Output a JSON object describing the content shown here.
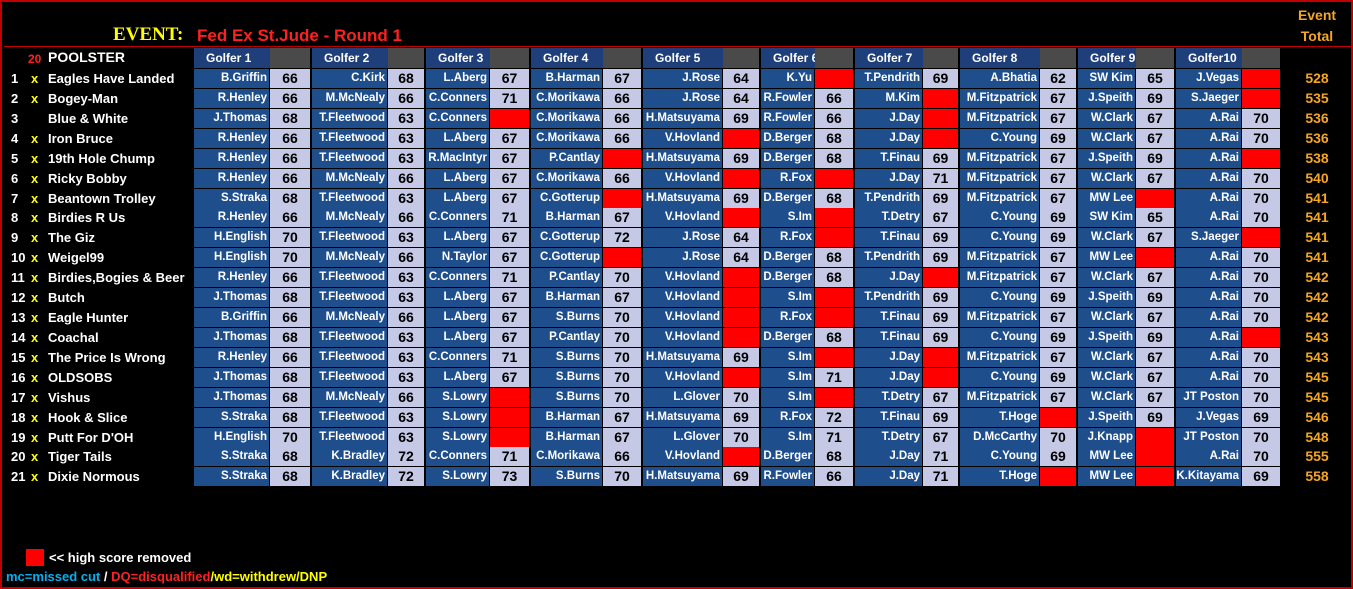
{
  "event": {
    "label": "EVENT:",
    "name": "Fed Ex St.Jude - Round 1",
    "total_header_line1": "Event",
    "total_header_line2": "Total"
  },
  "header": {
    "count": "20",
    "poolster": "POOLSTER",
    "golfers": [
      "Golfer 1",
      "Golfer 2",
      "Golfer 3",
      "Golfer 4",
      "Golfer 5",
      "Golfer 6",
      "Golfer 7",
      "Golfer 8",
      "Golfer 9",
      "Golfer10"
    ]
  },
  "rows": [
    {
      "rank": "1",
      "mark": "x",
      "name": "Eagles Have Landed",
      "cells": [
        [
          "B.Griffin",
          "66"
        ],
        [
          "C.Kirk",
          "68"
        ],
        [
          "L.Aberg",
          "67"
        ],
        [
          "B.Harman",
          "67"
        ],
        [
          "J.Rose",
          "64"
        ],
        [
          "K.Yu",
          ""
        ],
        [
          "T.Pendrith",
          "69"
        ],
        [
          "A.Bhatia",
          "62"
        ],
        [
          "SW Kim",
          "65"
        ],
        [
          "J.Vegas",
          ""
        ]
      ],
      "total": "528"
    },
    {
      "rank": "2",
      "mark": "x",
      "name": "Bogey-Man",
      "cells": [
        [
          "R.Henley",
          "66"
        ],
        [
          "M.McNealy",
          "66"
        ],
        [
          "C.Conners",
          "71"
        ],
        [
          "C.Morikawa",
          "66"
        ],
        [
          "J.Rose",
          "64"
        ],
        [
          "R.Fowler",
          "66"
        ],
        [
          "M.Kim",
          ""
        ],
        [
          "M.Fitzpatrick",
          "67"
        ],
        [
          "J.Speith",
          "69"
        ],
        [
          "S.Jaeger",
          ""
        ]
      ],
      "total": "535"
    },
    {
      "rank": "3",
      "mark": "",
      "name": "Blue & White",
      "cells": [
        [
          "J.Thomas",
          "68"
        ],
        [
          "T.Fleetwood",
          "63"
        ],
        [
          "C.Conners",
          ""
        ],
        [
          "C.Morikawa",
          "66"
        ],
        [
          "H.Matsuyama",
          "69"
        ],
        [
          "R.Fowler",
          "66"
        ],
        [
          "J.Day",
          ""
        ],
        [
          "M.Fitzpatrick",
          "67"
        ],
        [
          "W.Clark",
          "67"
        ],
        [
          "A.Rai",
          "70"
        ]
      ],
      "total": "536"
    },
    {
      "rank": "4",
      "mark": "x",
      "name": "Iron Bruce",
      "cells": [
        [
          "R.Henley",
          "66"
        ],
        [
          "T.Fleetwood",
          "63"
        ],
        [
          "L.Aberg",
          "67"
        ],
        [
          "C.Morikawa",
          "66"
        ],
        [
          "V.Hovland",
          ""
        ],
        [
          "D.Berger",
          "68"
        ],
        [
          "J.Day",
          ""
        ],
        [
          "C.Young",
          "69"
        ],
        [
          "W.Clark",
          "67"
        ],
        [
          "A.Rai",
          "70"
        ]
      ],
      "total": "536"
    },
    {
      "rank": "5",
      "mark": "x",
      "name": "19th Hole Chump",
      "cells": [
        [
          "R.Henley",
          "66"
        ],
        [
          "T.Fleetwood",
          "63"
        ],
        [
          "R.MacIntyr",
          "67"
        ],
        [
          "P.Cantlay",
          ""
        ],
        [
          "H.Matsuyama",
          "69"
        ],
        [
          "D.Berger",
          "68"
        ],
        [
          "T.Finau",
          "69"
        ],
        [
          "M.Fitzpatrick",
          "67"
        ],
        [
          "J.Speith",
          "69"
        ],
        [
          "A.Rai",
          ""
        ]
      ],
      "total": "538"
    },
    {
      "rank": "6",
      "mark": "x",
      "name": "Ricky Bobby",
      "cells": [
        [
          "R.Henley",
          "66"
        ],
        [
          "M.McNealy",
          "66"
        ],
        [
          "L.Aberg",
          "67"
        ],
        [
          "C.Morikawa",
          "66"
        ],
        [
          "V.Hovland",
          ""
        ],
        [
          "R.Fox",
          ""
        ],
        [
          "J.Day",
          "71"
        ],
        [
          "M.Fitzpatrick",
          "67"
        ],
        [
          "W.Clark",
          "67"
        ],
        [
          "A.Rai",
          "70"
        ]
      ],
      "total": "540"
    },
    {
      "rank": "7",
      "mark": "x",
      "name": "Beantown Trolley",
      "cells": [
        [
          "S.Straka",
          "68"
        ],
        [
          "T.Fleetwood",
          "63"
        ],
        [
          "L.Aberg",
          "67"
        ],
        [
          "C.Gotterup",
          ""
        ],
        [
          "H.Matsuyama",
          "69"
        ],
        [
          "D.Berger",
          "68"
        ],
        [
          "T.Pendrith",
          "69"
        ],
        [
          "M.Fitzpatrick",
          "67"
        ],
        [
          "MW Lee",
          ""
        ],
        [
          "A.Rai",
          "70"
        ]
      ],
      "total": "541"
    },
    {
      "rank": "8",
      "mark": "x",
      "name": "Birdies R Us",
      "cells": [
        [
          "R.Henley",
          "66"
        ],
        [
          "M.McNealy",
          "66"
        ],
        [
          "C.Conners",
          "71"
        ],
        [
          "B.Harman",
          "67"
        ],
        [
          "V.Hovland",
          ""
        ],
        [
          "S.Im",
          ""
        ],
        [
          "T.Detry",
          "67"
        ],
        [
          "C.Young",
          "69"
        ],
        [
          "SW Kim",
          "65"
        ],
        [
          "A.Rai",
          "70"
        ]
      ],
      "total": "541"
    },
    {
      "rank": "9",
      "mark": "x",
      "name": "The Giz",
      "cells": [
        [
          "H.English",
          "70"
        ],
        [
          "T.Fleetwood",
          "63"
        ],
        [
          "L.Aberg",
          "67"
        ],
        [
          "C.Gotterup",
          "72"
        ],
        [
          "J.Rose",
          "64"
        ],
        [
          "R.Fox",
          ""
        ],
        [
          "T.Finau",
          "69"
        ],
        [
          "C.Young",
          "69"
        ],
        [
          "W.Clark",
          "67"
        ],
        [
          "S.Jaeger",
          ""
        ]
      ],
      "total": "541"
    },
    {
      "rank": "10",
      "mark": "x",
      "name": "Weigel99",
      "cells": [
        [
          "H.English",
          "70"
        ],
        [
          "M.McNealy",
          "66"
        ],
        [
          "N.Taylor",
          "67"
        ],
        [
          "C.Gotterup",
          ""
        ],
        [
          "J.Rose",
          "64"
        ],
        [
          "D.Berger",
          "68"
        ],
        [
          "T.Pendrith",
          "69"
        ],
        [
          "M.Fitzpatrick",
          "67"
        ],
        [
          "MW Lee",
          ""
        ],
        [
          "A.Rai",
          "70"
        ]
      ],
      "total": "541"
    },
    {
      "rank": "11",
      "mark": "x",
      "name": "Birdies,Bogies & Beer",
      "cells": [
        [
          "R.Henley",
          "66"
        ],
        [
          "T.Fleetwood",
          "63"
        ],
        [
          "C.Conners",
          "71"
        ],
        [
          "P.Cantlay",
          "70"
        ],
        [
          "V.Hovland",
          ""
        ],
        [
          "D.Berger",
          "68"
        ],
        [
          "J.Day",
          ""
        ],
        [
          "M.Fitzpatrick",
          "67"
        ],
        [
          "W.Clark",
          "67"
        ],
        [
          "A.Rai",
          "70"
        ]
      ],
      "total": "542"
    },
    {
      "rank": "12",
      "mark": "x",
      "name": "Butch",
      "cells": [
        [
          "J.Thomas",
          "68"
        ],
        [
          "T.Fleetwood",
          "63"
        ],
        [
          "L.Aberg",
          "67"
        ],
        [
          "B.Harman",
          "67"
        ],
        [
          "V.Hovland",
          ""
        ],
        [
          "S.Im",
          ""
        ],
        [
          "T.Pendrith",
          "69"
        ],
        [
          "C.Young",
          "69"
        ],
        [
          "J.Speith",
          "69"
        ],
        [
          "A.Rai",
          "70"
        ]
      ],
      "total": "542"
    },
    {
      "rank": "13",
      "mark": "x",
      "name": "Eagle Hunter",
      "cells": [
        [
          "B.Griffin",
          "66"
        ],
        [
          "M.McNealy",
          "66"
        ],
        [
          "L.Aberg",
          "67"
        ],
        [
          "S.Burns",
          "70"
        ],
        [
          "V.Hovland",
          ""
        ],
        [
          "R.Fox",
          ""
        ],
        [
          "T.Finau",
          "69"
        ],
        [
          "M.Fitzpatrick",
          "67"
        ],
        [
          "W.Clark",
          "67"
        ],
        [
          "A.Rai",
          "70"
        ]
      ],
      "total": "542"
    },
    {
      "rank": "14",
      "mark": "x",
      "name": "Coachal",
      "cells": [
        [
          "J.Thomas",
          "68"
        ],
        [
          "T.Fleetwood",
          "63"
        ],
        [
          "L.Aberg",
          "67"
        ],
        [
          "P.Cantlay",
          "70"
        ],
        [
          "V.Hovland",
          ""
        ],
        [
          "D.Berger",
          "68"
        ],
        [
          "T.Finau",
          "69"
        ],
        [
          "C.Young",
          "69"
        ],
        [
          "J.Speith",
          "69"
        ],
        [
          "A.Rai",
          ""
        ]
      ],
      "total": "543"
    },
    {
      "rank": "15",
      "mark": "x",
      "name": "The Price Is Wrong",
      "cells": [
        [
          "R.Henley",
          "66"
        ],
        [
          "T.Fleetwood",
          "63"
        ],
        [
          "C.Conners",
          "71"
        ],
        [
          "S.Burns",
          "70"
        ],
        [
          "H.Matsuyama",
          "69"
        ],
        [
          "S.Im",
          ""
        ],
        [
          "J.Day",
          ""
        ],
        [
          "M.Fitzpatrick",
          "67"
        ],
        [
          "W.Clark",
          "67"
        ],
        [
          "A.Rai",
          "70"
        ]
      ],
      "total": "543"
    },
    {
      "rank": "16",
      "mark": "x",
      "name": "OLDSOBS",
      "cells": [
        [
          "J.Thomas",
          "68"
        ],
        [
          "T.Fleetwood",
          "63"
        ],
        [
          "L.Aberg",
          "67"
        ],
        [
          "S.Burns",
          "70"
        ],
        [
          "V.Hovland",
          ""
        ],
        [
          "S.Im",
          "71"
        ],
        [
          "J.Day",
          ""
        ],
        [
          "C.Young",
          "69"
        ],
        [
          "W.Clark",
          "67"
        ],
        [
          "A.Rai",
          "70"
        ]
      ],
      "total": "545"
    },
    {
      "rank": "17",
      "mark": "x",
      "name": "Vishus",
      "cells": [
        [
          "J.Thomas",
          "68"
        ],
        [
          "M.McNealy",
          "66"
        ],
        [
          "S.Lowry",
          ""
        ],
        [
          "S.Burns",
          "70"
        ],
        [
          "L.Glover",
          "70"
        ],
        [
          "S.Im",
          ""
        ],
        [
          "T.Detry",
          "67"
        ],
        [
          "M.Fitzpatrick",
          "67"
        ],
        [
          "W.Clark",
          "67"
        ],
        [
          "JT Poston",
          "70"
        ]
      ],
      "total": "545"
    },
    {
      "rank": "18",
      "mark": "x",
      "name": "Hook & Slice",
      "cells": [
        [
          "S.Straka",
          "68"
        ],
        [
          "T.Fleetwood",
          "63"
        ],
        [
          "S.Lowry",
          ""
        ],
        [
          "B.Harman",
          "67"
        ],
        [
          "H.Matsuyama",
          "69"
        ],
        [
          "R.Fox",
          "72"
        ],
        [
          "T.Finau",
          "69"
        ],
        [
          "T.Hoge",
          ""
        ],
        [
          "J.Speith",
          "69"
        ],
        [
          "J.Vegas",
          "69"
        ]
      ],
      "total": "546"
    },
    {
      "rank": "19",
      "mark": "x",
      "name": "Putt For D'OH",
      "cells": [
        [
          "H.English",
          "70"
        ],
        [
          "T.Fleetwood",
          "63"
        ],
        [
          "S.Lowry",
          ""
        ],
        [
          "B.Harman",
          "67"
        ],
        [
          "L.Glover",
          "70"
        ],
        [
          "S.Im",
          "71"
        ],
        [
          "T.Detry",
          "67"
        ],
        [
          "D.McCarthy",
          "70"
        ],
        [
          "J.Knapp",
          ""
        ],
        [
          "JT Poston",
          "70"
        ]
      ],
      "total": "548"
    },
    {
      "rank": "20",
      "mark": "x",
      "name": "Tiger Tails",
      "cells": [
        [
          "S.Straka",
          "68"
        ],
        [
          "K.Bradley",
          "72"
        ],
        [
          "C.Conners",
          "71"
        ],
        [
          "C.Morikawa",
          "66"
        ],
        [
          "V.Hovland",
          ""
        ],
        [
          "D.Berger",
          "68"
        ],
        [
          "J.Day",
          "71"
        ],
        [
          "C.Young",
          "69"
        ],
        [
          "MW Lee",
          ""
        ],
        [
          "A.Rai",
          "70"
        ]
      ],
      "total": "555"
    },
    {
      "rank": "21",
      "mark": "x",
      "name": "Dixie Normous",
      "cells": [
        [
          "S.Straka",
          "68"
        ],
        [
          "K.Bradley",
          "72"
        ],
        [
          "S.Lowry",
          "73"
        ],
        [
          "S.Burns",
          "70"
        ],
        [
          "H.Matsuyama",
          "69"
        ],
        [
          "R.Fowler",
          "66"
        ],
        [
          "J.Day",
          "71"
        ],
        [
          "T.Hoge",
          ""
        ],
        [
          "MW Lee",
          ""
        ],
        [
          "K.Kitayama",
          "69"
        ]
      ],
      "total": "558"
    }
  ],
  "legend": {
    "text": "<< high score removed",
    "color": "#ff0000"
  },
  "footer": {
    "mc": "mc=missed cut",
    "sep": " / ",
    "dq": "DQ=disqualified",
    "wd": "/wd=withdrew/DNP"
  },
  "colors": {
    "name_cell": "#1f4e8c",
    "score_cell": "#c6c9e6",
    "removed": "#ff0000",
    "total": "#f5a623",
    "event_name": "#ff2020"
  }
}
